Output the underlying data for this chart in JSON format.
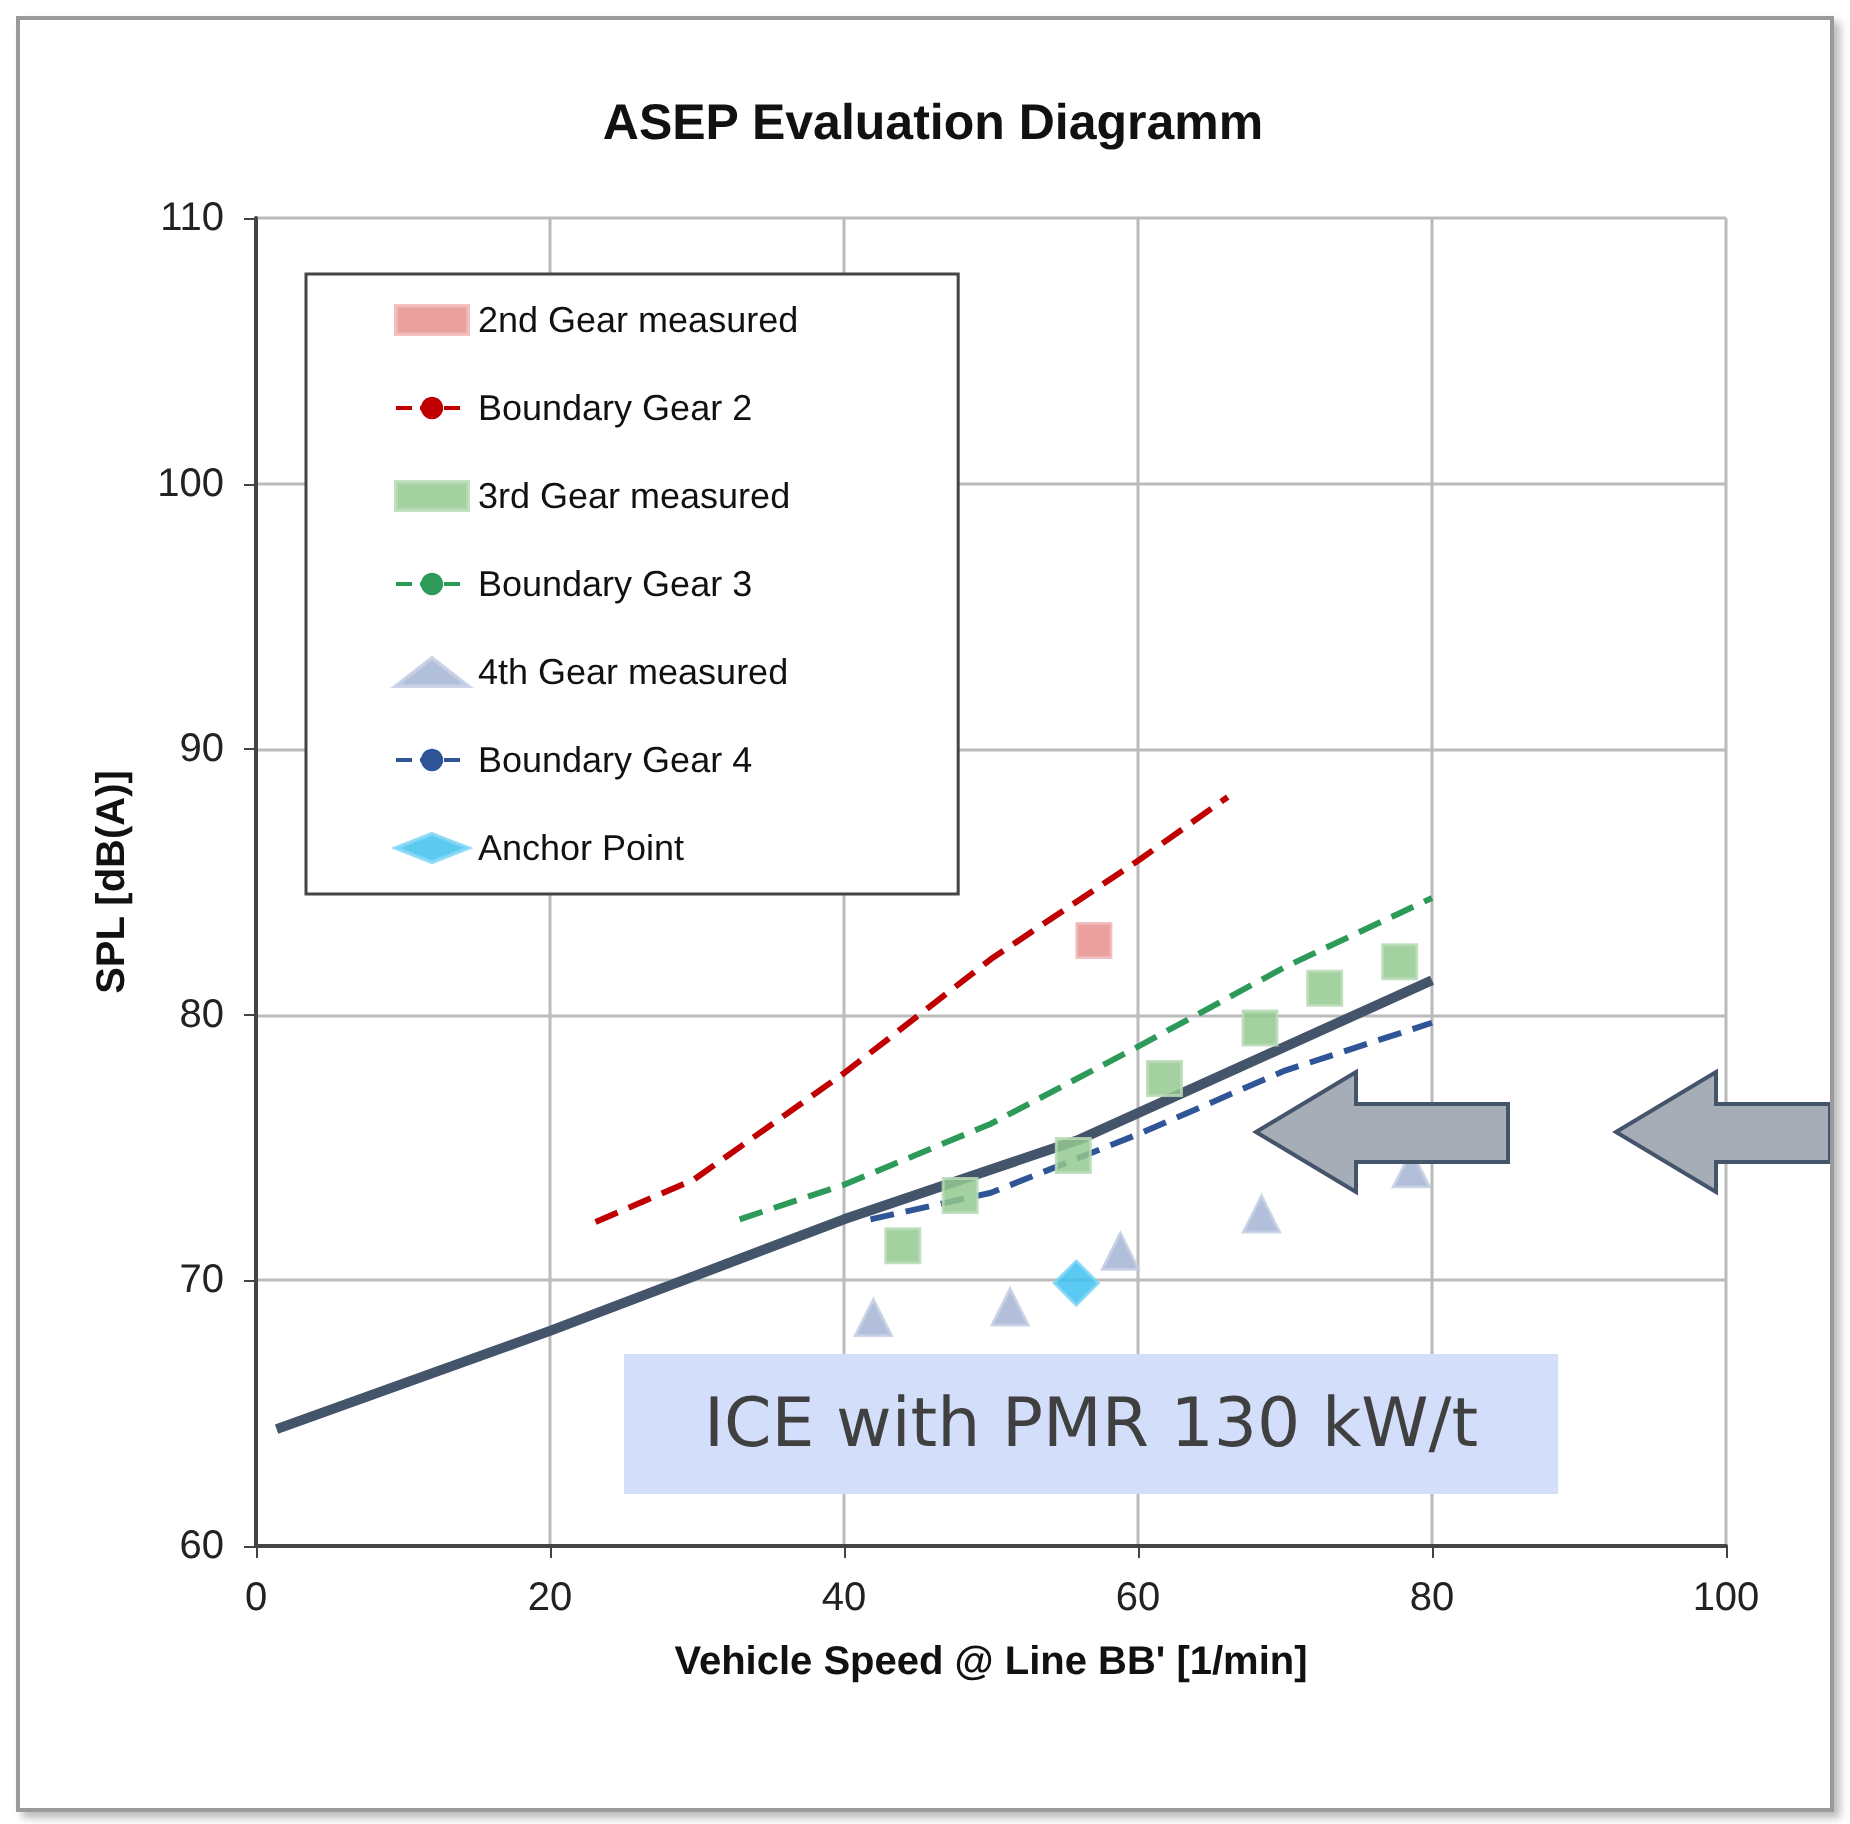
{
  "chart_data": {
    "type": "scatter",
    "title": "ASEP Evaluation Diagramm",
    "xlabel": "Vehicle Speed @ Line BB' [1/min]",
    "ylabel": "SPL [dB(A)]",
    "xlim": [
      0,
      100
    ],
    "xticks": [
      0,
      20,
      40,
      60,
      80,
      100
    ],
    "ylim": [
      60,
      110
    ],
    "yticks": [
      60,
      70,
      80,
      90,
      100,
      110
    ],
    "grid": true,
    "legend": "top left",
    "annotations": [
      "ICE with PMR 130 kW/t"
    ],
    "series": [
      {
        "name": "2nd Gear measured",
        "marker": "square",
        "color": "#e88f8f",
        "x": [
          57.0
        ],
        "values": [
          82.8
        ]
      },
      {
        "name": "Boundary Gear 2",
        "type": "line",
        "marker": "none",
        "line_style": "dashed",
        "color": "#c00000",
        "x": [
          23.1,
          29.8,
          40,
          50,
          60,
          66.1
        ],
        "values": [
          72.2,
          73.8,
          77.8,
          82.1,
          85.8,
          88.2
        ]
      },
      {
        "name": "3rd Gear measured",
        "marker": "square",
        "color": "#93c98f",
        "x": [
          44.0,
          47.9,
          55.6,
          61.8,
          68.3,
          72.7,
          77.8
        ],
        "values": [
          71.3,
          73.2,
          74.7,
          77.6,
          79.5,
          81.0,
          82.0
        ]
      },
      {
        "name": "Boundary Gear 3",
        "type": "line",
        "marker": "none",
        "line_style": "dashed",
        "color": "#2e9a5a",
        "x": [
          32.9,
          40,
          50,
          60,
          70,
          80
        ],
        "values": [
          72.3,
          73.6,
          75.9,
          78.8,
          81.8,
          84.4
        ]
      },
      {
        "name": "4th Gear measured",
        "marker": "triangle",
        "color": "#a5b4d4",
        "x": [
          42.0,
          51.3,
          58.8,
          68.4,
          78.6
        ],
        "values": [
          68.6,
          69.0,
          71.1,
          72.5,
          74.2
        ]
      },
      {
        "name": "Boundary Gear 4",
        "type": "line",
        "marker": "none",
        "line_style": "dashed",
        "color": "#2f5597",
        "x": [
          41.8,
          50,
          60,
          70,
          80
        ],
        "values": [
          72.3,
          73.3,
          75.5,
          77.9,
          79.7
        ]
      },
      {
        "name": "Anchor Point",
        "marker": "diamond",
        "color": "#3dc1f0",
        "x": [
          55.8
        ],
        "values": [
          69.9
        ]
      },
      {
        "type": "line",
        "marker": "none",
        "line_style": "solid",
        "color": "#44546a",
        "x": [
          1.4,
          20,
          40,
          56,
          80
        ],
        "values": [
          64.4,
          68.1,
          72.3,
          75.3,
          81.3
        ]
      }
    ]
  }
}
